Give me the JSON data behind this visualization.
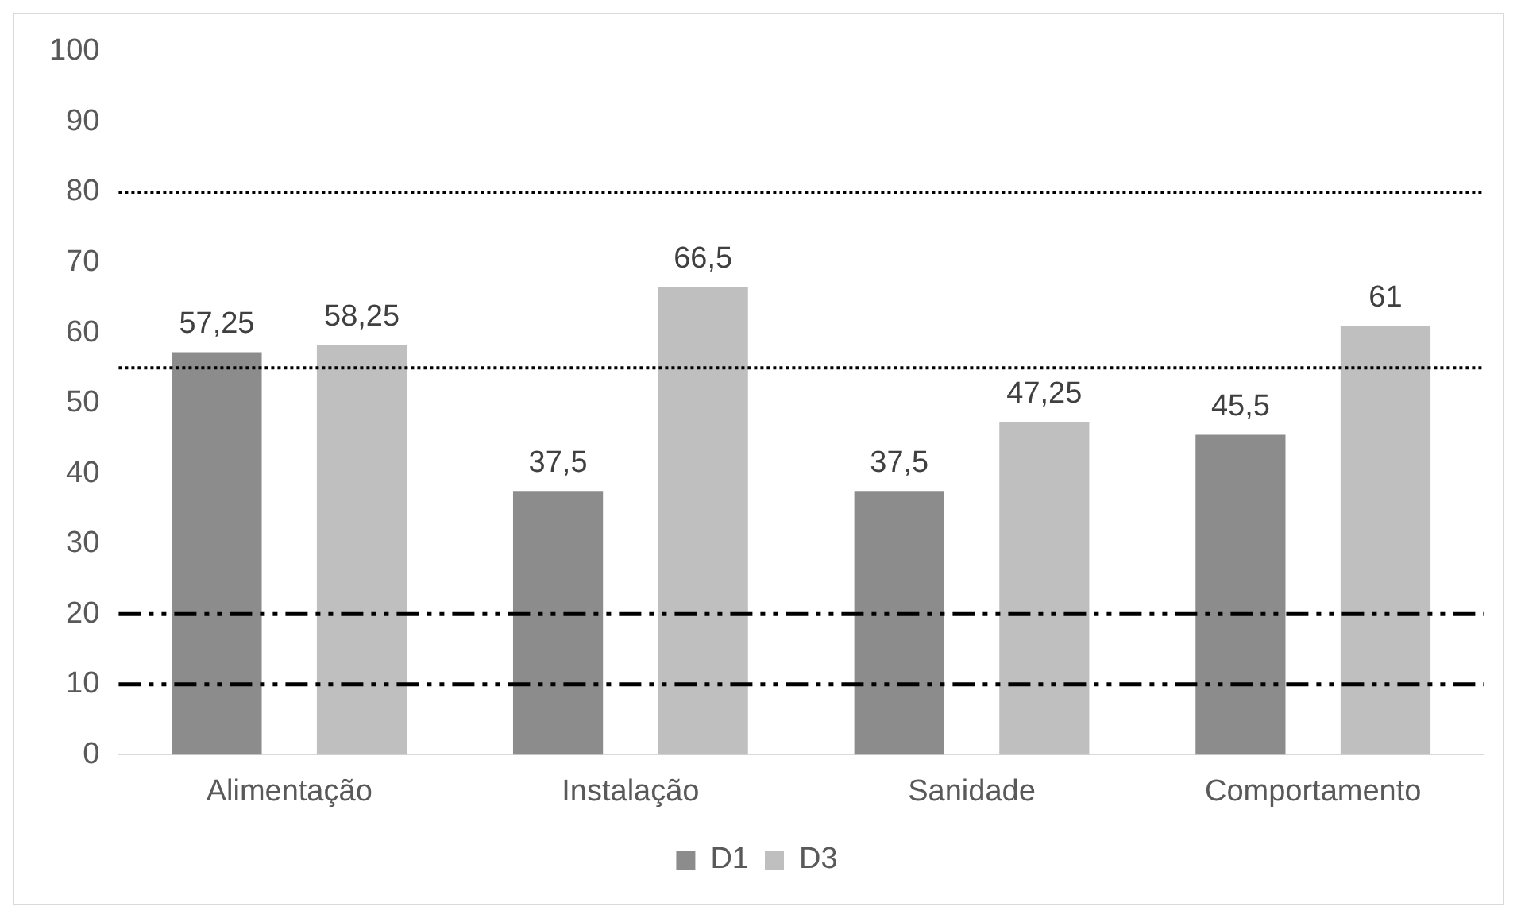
{
  "chart_data": {
    "type": "bar",
    "categories": [
      "Alimentação",
      "Instalação",
      "Sanidade",
      "Comportamento"
    ],
    "series": [
      {
        "name": "D1",
        "color": "#8c8c8c",
        "values": [
          57.25,
          37.5,
          37.5,
          45.5
        ],
        "value_labels": [
          "57,25",
          "37,5",
          "37,5",
          "45,5"
        ]
      },
      {
        "name": "D3",
        "color": "#bfbfbf",
        "values": [
          58.25,
          66.5,
          47.25,
          61
        ],
        "value_labels": [
          "58,25",
          "66,5",
          "47,25",
          "61"
        ]
      }
    ],
    "ylim": [
      0,
      100
    ],
    "yticks": [
      0,
      10,
      20,
      30,
      40,
      50,
      60,
      70,
      80,
      90,
      100
    ],
    "grid": false,
    "legend": "bottom",
    "ref_lines": [
      {
        "axis": "y",
        "value": 80,
        "color": "#000000",
        "line_style": "dotted"
      },
      {
        "axis": "y",
        "value": 55,
        "color": "#000000",
        "line_style": "dotted"
      },
      {
        "axis": "y",
        "value": 20,
        "color": "#000000",
        "line_style": "dashed"
      },
      {
        "axis": "y",
        "value": 10,
        "color": "#000000",
        "line_style": "dashed"
      }
    ]
  }
}
